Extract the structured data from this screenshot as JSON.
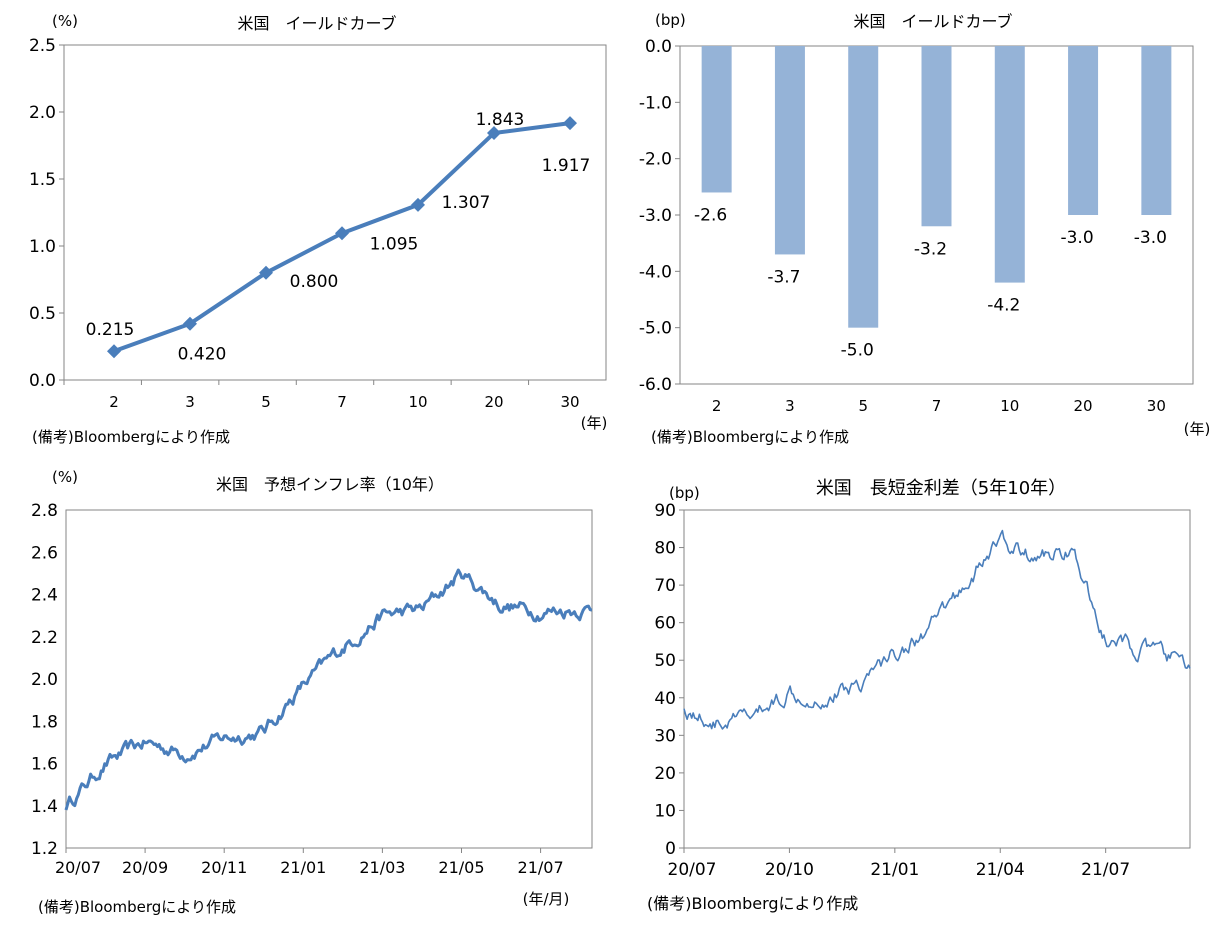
{
  "chart_data": [
    {
      "id": "yield-curve-line",
      "type": "line",
      "title": "米国　イールドカーブ",
      "ylabel": "(%)",
      "xlabel": "(年)",
      "categories": [
        "2",
        "3",
        "5",
        "7",
        "10",
        "20",
        "30"
      ],
      "values": [
        0.215,
        0.42,
        0.8,
        1.095,
        1.307,
        1.843,
        1.917
      ],
      "data_labels": [
        "0.215",
        "0.420",
        "0.800",
        "1.095",
        "1.307",
        "1.843",
        "1.917"
      ],
      "ylim": [
        0,
        2.5
      ],
      "yticks": [
        "0.0",
        "0.5",
        "1.0",
        "1.5",
        "2.0",
        "2.5"
      ],
      "color": "#4a7ebb",
      "note": "(備考)Bloombergにより作成"
    },
    {
      "id": "yield-change-bar",
      "type": "bar",
      "title": "米国　イールドカーブ",
      "ylabel": "(bp)",
      "xlabel": "(年)",
      "categories": [
        "2",
        "3",
        "5",
        "7",
        "10",
        "20",
        "30"
      ],
      "values": [
        -2.6,
        -3.7,
        -5.0,
        -3.2,
        -4.2,
        -3.0,
        -3.0
      ],
      "data_labels": [
        "-2.6",
        "-3.7",
        "-5.0",
        "-3.2",
        "-4.2",
        "-3.0",
        "-3.0"
      ],
      "ylim": [
        -6,
        0
      ],
      "yticks": [
        "0.0",
        "-1.0",
        "-2.0",
        "-3.0",
        "-4.0",
        "-5.0",
        "-6.0"
      ],
      "color": "#95b3d7",
      "note": "(備考)Bloombergにより作成"
    },
    {
      "id": "inflation-expectation",
      "type": "line",
      "title": "米国　予想インフレ率（10年）",
      "ylabel": "(%)",
      "xlabel": "(年/月)",
      "x_ticks": [
        "20/07",
        "20/09",
        "20/11",
        "21/01",
        "21/03",
        "21/05",
        "21/07"
      ],
      "x_tick_month_index": [
        0,
        2,
        4,
        6,
        8,
        10,
        12
      ],
      "x_span_months": 13.3,
      "ylim": [
        1.2,
        2.8
      ],
      "yticks": [
        "2.8",
        "2.6",
        "2.4",
        "2.2",
        "2.0",
        "1.8",
        "1.6",
        "1.4",
        "1.2"
      ],
      "monthly_values": [
        1.4,
        1.6,
        1.7,
        1.65,
        1.72,
        1.75,
        1.97,
        2.15,
        2.3,
        2.33,
        2.5,
        2.35,
        2.32,
        2.33
      ],
      "color": "#4a7ebb",
      "note": "(備考)Bloombergにより作成"
    },
    {
      "id": "term-spread",
      "type": "line",
      "title": "米国　長短金利差（5年10年）",
      "ylabel": "(bp)",
      "x_ticks": [
        "20/07",
        "20/10",
        "21/01",
        "21/04",
        "21/07"
      ],
      "x_tick_month_index": [
        0,
        3,
        6,
        9,
        12
      ],
      "x_span_months": 14.4,
      "ylim": [
        0,
        90
      ],
      "yticks": [
        "90",
        "80",
        "70",
        "60",
        "50",
        "40",
        "30",
        "20",
        "10",
        "0"
      ],
      "monthly_values": [
        37,
        33,
        35,
        42,
        40,
        44,
        52,
        58,
        70,
        82,
        77,
        80,
        55,
        53,
        50
      ],
      "color": "#4a7ebb",
      "note": "(備考)Bloombergにより作成"
    }
  ]
}
